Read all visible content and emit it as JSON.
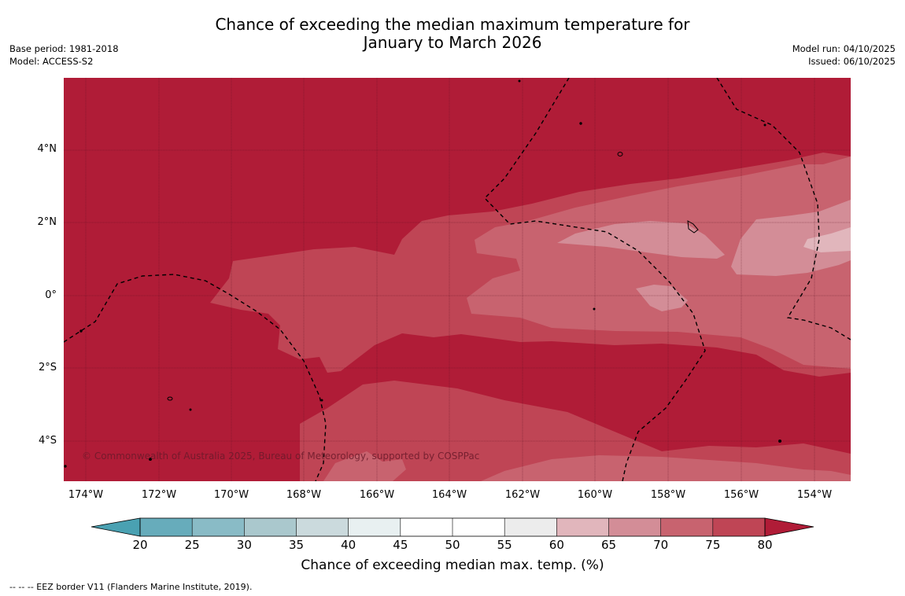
{
  "title": {
    "line1": "Chance of exceeding the median maximum temperature for",
    "line2": "January to March 2026"
  },
  "info_left": {
    "base_period": "Base period: 1981-2018",
    "model": "Model: ACCESS-S2"
  },
  "info_right": {
    "model_run": "Model run: 04/10/2025",
    "issued": "Issued: 06/10/2025"
  },
  "map": {
    "copyright": "© Commonwealth of Australia 2025, Bureau of Meteorology, supported by COSPPac",
    "lat_labels": [
      "4°N",
      "2°N",
      "0°",
      "2°S",
      "4°S"
    ],
    "lon_labels": [
      "174°W",
      "172°W",
      "170°W",
      "168°W",
      "166°W",
      "164°W",
      "162°W",
      "160°W",
      "158°W",
      "156°W",
      "154°W"
    ]
  },
  "colorbar": {
    "title": "Chance of exceeding median max. temp. (%)",
    "ticks": [
      "20",
      "25",
      "30",
      "35",
      "40",
      "45",
      "50",
      "55",
      "60",
      "65",
      "70",
      "75",
      "80"
    ],
    "colors": [
      "#67acbb",
      "#89bbc6",
      "#aac8cd",
      "#cbdadd",
      "#e8f0f1",
      "#ffffff",
      "#ffffff",
      "#ececec",
      "#e1b6bc",
      "#d38d97",
      "#c8636f",
      "#bf4555"
    ],
    "under_color": "#4aa1b2",
    "over_color": "#b01c37"
  },
  "footnote": "--  --  -- EEZ border V11 (Flanders Marine Institute, 2019)."
}
